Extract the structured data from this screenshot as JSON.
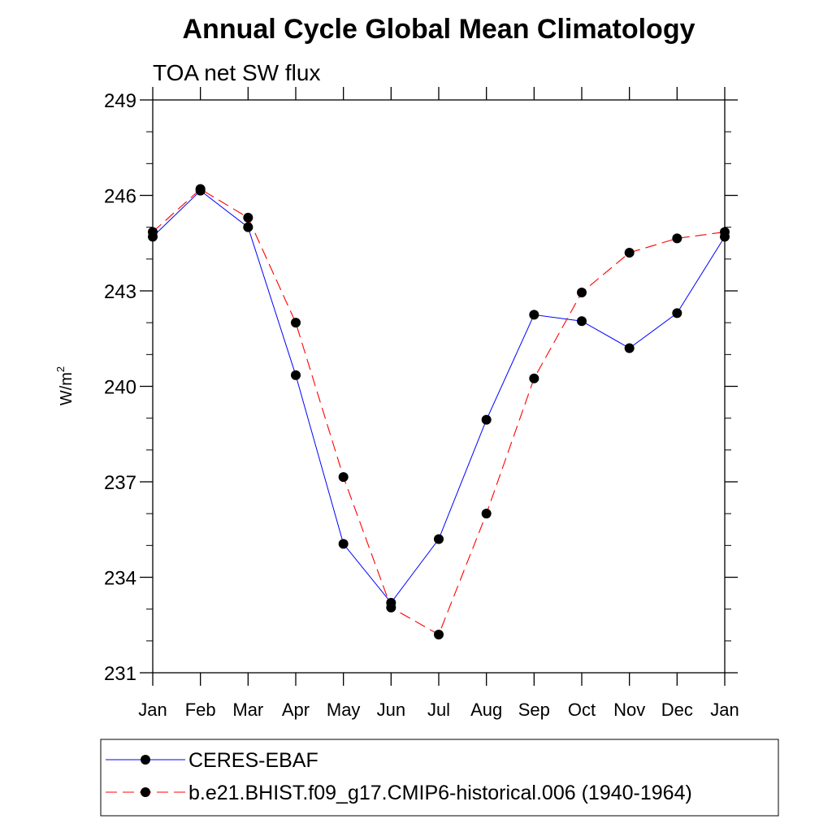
{
  "chart_data": {
    "type": "line",
    "title": "Annual Cycle Global Mean Climatology",
    "subtitle": "TOA net SW flux",
    "ylabel": "W/m",
    "ylabel_sup": "2",
    "xlabel": "",
    "categories": [
      "Jan",
      "Feb",
      "Mar",
      "Apr",
      "May",
      "Jun",
      "Jul",
      "Aug",
      "Sep",
      "Oct",
      "Nov",
      "Dec",
      "Jan"
    ],
    "ylim": [
      231,
      249
    ],
    "yticks": [
      "231",
      "234",
      "237",
      "240",
      "243",
      "246",
      "249"
    ],
    "grid": false,
    "legend_position": "bottom",
    "series": [
      {
        "name": "CERES-EBAF",
        "color": "#0000ff",
        "dash": "solid",
        "values": [
          244.7,
          246.15,
          245.0,
          240.35,
          235.05,
          233.2,
          235.2,
          238.95,
          242.25,
          242.05,
          241.2,
          242.3,
          244.7
        ]
      },
      {
        "name": "b.e21.BHIST.f09_g17.CMIP6-historical.006 (1940-1964)",
        "color": "#ff0000",
        "dash": "dashed",
        "values": [
          244.85,
          246.2,
          245.3,
          242.0,
          237.15,
          233.05,
          232.2,
          236.0,
          240.25,
          242.95,
          244.2,
          244.65,
          244.85
        ]
      }
    ]
  }
}
